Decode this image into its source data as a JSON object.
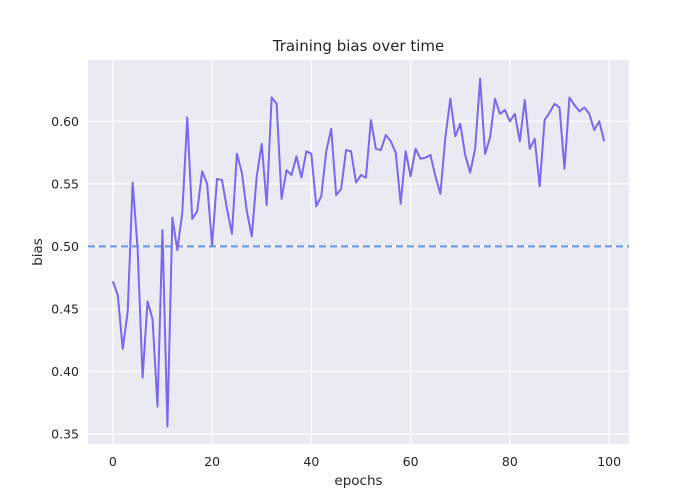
{
  "chart_data": {
    "type": "line",
    "title": "Training bias over time",
    "xlabel": "epochs",
    "ylabel": "bias",
    "xlim": [
      -5,
      104
    ],
    "ylim": [
      0.342,
      0.649
    ],
    "xticks": [
      0,
      20,
      40,
      60,
      80,
      100
    ],
    "xtick_labels": [
      "0",
      "20",
      "40",
      "60",
      "80",
      "100"
    ],
    "yticks": [
      0.35,
      0.4,
      0.45,
      0.5,
      0.55,
      0.6
    ],
    "ytick_labels": [
      "0.35",
      "0.40",
      "0.45",
      "0.50",
      "0.55",
      "0.60"
    ],
    "grid": true,
    "background": "#eaeaf2",
    "grid_color": "#ffffff",
    "line_color": "#7b68ee",
    "reference_line": {
      "y": 0.5,
      "style": "dashed",
      "color": "#6495ed"
    },
    "series": [
      {
        "x": [
          0,
          1,
          2,
          3,
          4,
          5,
          6,
          7,
          8,
          9,
          10,
          11,
          12,
          13,
          14,
          15,
          16,
          17,
          18,
          19,
          20,
          21,
          22,
          23,
          24,
          25,
          26,
          27,
          28,
          29,
          30,
          31,
          32,
          33,
          34,
          35,
          36,
          37,
          38,
          39,
          40,
          41,
          42,
          43,
          44,
          45,
          46,
          47,
          48,
          49,
          50,
          51,
          52,
          53,
          54,
          55,
          56,
          57,
          58,
          59,
          60,
          61,
          62,
          63,
          64,
          65,
          66,
          67,
          68,
          69,
          70,
          71,
          72,
          73,
          74,
          75,
          76,
          77,
          78,
          79,
          80,
          81,
          82,
          83,
          84,
          85,
          86,
          87,
          88,
          89,
          90,
          91,
          92,
          93,
          94,
          95,
          96,
          97,
          98,
          99
        ],
        "y": [
          0.472,
          0.461,
          0.418,
          0.448,
          0.551,
          0.498,
          0.395,
          0.456,
          0.442,
          0.372,
          0.513,
          0.356,
          0.523,
          0.497,
          0.527,
          0.603,
          0.522,
          0.528,
          0.56,
          0.55,
          0.501,
          0.554,
          0.553,
          0.53,
          0.51,
          0.574,
          0.559,
          0.528,
          0.508,
          0.556,
          0.582,
          0.533,
          0.619,
          0.614,
          0.538,
          0.561,
          0.557,
          0.572,
          0.555,
          0.576,
          0.574,
          0.532,
          0.54,
          0.576,
          0.594,
          0.541,
          0.546,
          0.577,
          0.576,
          0.551,
          0.557,
          0.555,
          0.601,
          0.578,
          0.577,
          0.589,
          0.584,
          0.575,
          0.534,
          0.576,
          0.556,
          0.578,
          0.57,
          0.571,
          0.573,
          0.556,
          0.542,
          0.587,
          0.618,
          0.588,
          0.598,
          0.573,
          0.559,
          0.578,
          0.634,
          0.574,
          0.587,
          0.618,
          0.606,
          0.609,
          0.6,
          0.606,
          0.584,
          0.617,
          0.578,
          0.586,
          0.548,
          0.601,
          0.607,
          0.614,
          0.611,
          0.562,
          0.619,
          0.613,
          0.608,
          0.611,
          0.606,
          0.593,
          0.6,
          0.584
        ]
      }
    ]
  }
}
